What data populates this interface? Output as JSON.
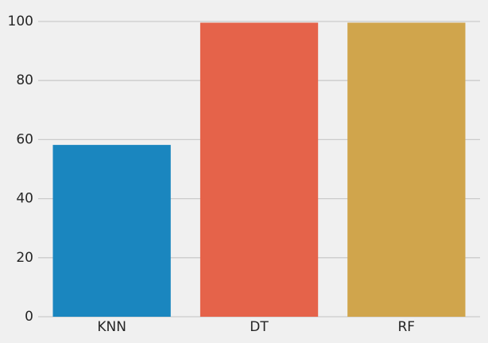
{
  "chart_data": {
    "type": "bar",
    "title": "",
    "xlabel": "",
    "ylabel": "",
    "categories": [
      "KNN",
      "DT",
      "RF"
    ],
    "values": [
      58.2,
      99.6,
      99.6
    ],
    "colors": [
      "#1a86bf",
      "#e5634a",
      "#d0a54c"
    ],
    "ylim": [
      0,
      105
    ],
    "yticks": [
      0,
      20,
      40,
      60,
      80,
      100
    ],
    "grid": "horizontal",
    "background": "#f0f0f0",
    "grid_color": "#cbcbcb"
  }
}
